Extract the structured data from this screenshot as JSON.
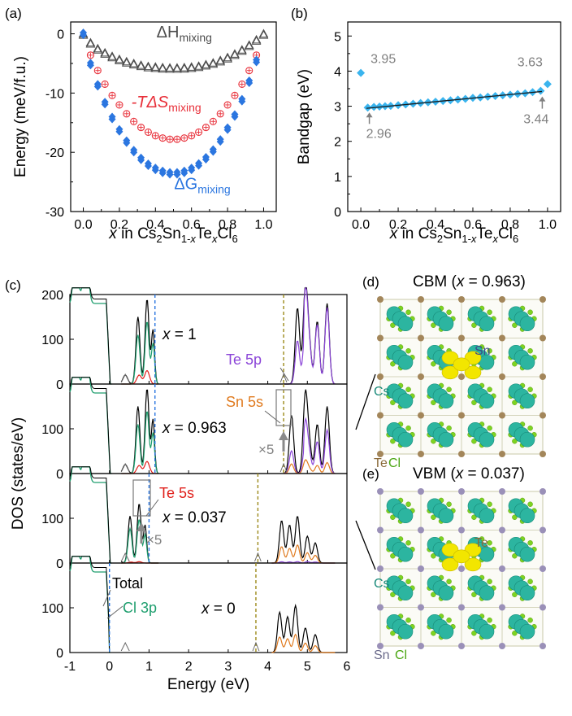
{
  "panel_labels": {
    "a": "(a)",
    "b": "(b)",
    "c": "(c)",
    "d": "(d)",
    "e": "(e)"
  },
  "colors": {
    "dH": "#4d4d4d",
    "TdS": "#e8303a",
    "dG": "#2b76e0",
    "bandgap": "#3ab4ee",
    "fit": "#1a1a1a",
    "total": "#000000",
    "cl3p": "#1e9e6e",
    "te5s": "#e0201b",
    "sn5s": "#e07b20",
    "te5p": "#8b45d8",
    "vbm_line": "#2b76e0",
    "cbm_line": "#9c8a1a",
    "gray_annot": "#808080",
    "cs_atom": "#2cb5a0",
    "cl_atom": "#7ed321",
    "sn_atom": "#9a90b8",
    "te_atom": "#a3865a",
    "orbital": "#f2e600"
  },
  "chart_data": [
    {
      "panel": "a",
      "type": "scatter",
      "xlabel": {
        "prefix": "x",
        "text": " in Cs",
        "formula": "Cs2Sn1-xTexCl6"
      },
      "ylabel": "Energy (meV/f.u.)",
      "xlim": [
        -0.07,
        1.07
      ],
      "ylim": [
        -30,
        2
      ],
      "xticks": [
        0,
        0.2,
        0.4,
        0.6,
        0.8,
        1.0
      ],
      "xtick_labels": [
        "0.0",
        "0.2",
        "0.4",
        "0.6",
        "0.8",
        "1.0"
      ],
      "yticks": [
        0,
        -10,
        -20,
        -30
      ],
      "ytick_labels": [
        "0",
        "-10",
        "-20",
        "-30"
      ],
      "series": [
        {
          "name": "ΔH",
          "sub": "mixing",
          "marker": "open-triangle",
          "x": [
            0,
            0.04,
            0.08,
            0.12,
            0.16,
            0.2,
            0.24,
            0.28,
            0.32,
            0.36,
            0.4,
            0.44,
            0.48,
            0.52,
            0.56,
            0.6,
            0.64,
            0.68,
            0.72,
            0.76,
            0.8,
            0.84,
            0.88,
            0.92,
            0.96,
            1.0
          ],
          "y": [
            0,
            -1.5,
            -2.5,
            -3.2,
            -3.8,
            -4.3,
            -4.7,
            -5.0,
            -5.3,
            -5.5,
            -5.6,
            -5.7,
            -5.75,
            -5.75,
            -5.7,
            -5.6,
            -5.45,
            -5.2,
            -4.9,
            -4.5,
            -4.0,
            -3.4,
            -2.7,
            -1.9,
            -1.0,
            0
          ]
        },
        {
          "name": "-TΔS",
          "sub": "mixing",
          "marker": "circle-cross",
          "x": [
            0.04,
            0.08,
            0.12,
            0.16,
            0.2,
            0.24,
            0.28,
            0.32,
            0.36,
            0.4,
            0.44,
            0.48,
            0.52,
            0.56,
            0.6,
            0.64,
            0.68,
            0.72,
            0.76,
            0.8,
            0.84,
            0.88,
            0.92,
            0.96
          ],
          "y": [
            -3.6,
            -6.2,
            -8.5,
            -10.4,
            -12.0,
            -13.5,
            -14.8,
            -15.8,
            -16.6,
            -17.2,
            -17.6,
            -17.8,
            -17.8,
            -17.6,
            -17.2,
            -16.6,
            -15.8,
            -14.8,
            -13.5,
            -12.0,
            -10.4,
            -8.5,
            -6.2,
            -3.6
          ]
        },
        {
          "name": "ΔG",
          "sub": "mixing",
          "marker": "filled-diamond",
          "x": [
            0,
            0.04,
            0.08,
            0.12,
            0.16,
            0.2,
            0.24,
            0.28,
            0.32,
            0.36,
            0.4,
            0.44,
            0.48,
            0.52,
            0.56,
            0.6,
            0.64,
            0.68,
            0.72,
            0.76,
            0.8,
            0.84,
            0.88,
            0.92,
            0.96
          ],
          "y": [
            0,
            -5.1,
            -8.7,
            -11.7,
            -14.2,
            -16.3,
            -18.2,
            -19.8,
            -21.1,
            -22.1,
            -22.8,
            -23.3,
            -23.55,
            -23.55,
            -23.3,
            -22.8,
            -22.05,
            -21.0,
            -19.7,
            -18.0,
            -16.0,
            -13.8,
            -11.2,
            -8.1,
            -4.6
          ]
        }
      ],
      "annotations": [
        {
          "main": "ΔH",
          "sub": "mixing",
          "x": 0.56,
          "y": -0.6
        },
        {
          "main": "-TΔS",
          "sub": "mixing",
          "x": 0.46,
          "y": -12.4
        },
        {
          "main": "ΔG",
          "sub": "mixing",
          "x": 0.66,
          "y": -26.2
        }
      ]
    },
    {
      "panel": "b",
      "type": "scatter",
      "xlabel": "x in Cs2Sn1-xTexCl6",
      "ylabel": "Bandgap (eV)",
      "xlim": [
        -0.07,
        1.07
      ],
      "ylim": [
        0,
        5.4
      ],
      "xticks": [
        0,
        0.2,
        0.4,
        0.6,
        0.8,
        1.0
      ],
      "xtick_labels": [
        "0.0",
        "0.2",
        "0.4",
        "0.6",
        "0.8",
        "1.0"
      ],
      "yticks": [
        0,
        1,
        2,
        3,
        4,
        5
      ],
      "ytick_labels": [
        "0",
        "1",
        "2",
        "3",
        "4",
        "5"
      ],
      "series": [
        {
          "name": "bandgap",
          "x": [
            0,
            0.037,
            0.07,
            0.1,
            0.13,
            0.16,
            0.2,
            0.24,
            0.28,
            0.32,
            0.36,
            0.4,
            0.44,
            0.48,
            0.52,
            0.56,
            0.6,
            0.64,
            0.68,
            0.72,
            0.76,
            0.8,
            0.84,
            0.88,
            0.92,
            0.963,
            1.0
          ],
          "y": [
            3.95,
            2.96,
            2.98,
            2.99,
            3.0,
            3.01,
            3.03,
            3.05,
            3.07,
            3.09,
            3.11,
            3.13,
            3.15,
            3.17,
            3.19,
            3.21,
            3.24,
            3.25,
            3.27,
            3.29,
            3.31,
            3.33,
            3.35,
            3.37,
            3.4,
            3.44,
            3.63
          ]
        }
      ],
      "fit": {
        "x": [
          0.03,
          0.97
        ],
        "y": [
          2.94,
          3.42
        ]
      },
      "point_labels": [
        {
          "text": "3.95",
          "x": 0,
          "y": 3.95
        },
        {
          "text": "2.96",
          "x": 0.037,
          "y": 2.96
        },
        {
          "text": "3.63",
          "x": 1.0,
          "y": 3.63
        },
        {
          "text": "3.44",
          "x": 0.963,
          "y": 3.44
        }
      ]
    },
    {
      "panel": "c",
      "type": "line",
      "xlabel": "Energy (eV)",
      "ylabel": "DOS (states/eV)",
      "xlim": [
        -1,
        6
      ],
      "ylim": [
        0,
        200
      ],
      "xticks": [
        -1,
        0,
        1,
        2,
        3,
        4,
        5,
        6
      ],
      "xtick_labels": [
        "-1",
        "0",
        "1",
        "2",
        "3",
        "4",
        "5",
        "6"
      ],
      "yticks": [
        0,
        100,
        200
      ],
      "subpanels": [
        {
          "label": "x = 1",
          "x_value": "1",
          "vbm": 1.15,
          "cbm": 4.4,
          "ytick_labels": [
            "0",
            "100",
            "200"
          ]
        },
        {
          "label": "x = 0.963",
          "x_value": "0.963",
          "vbm": 1.15,
          "cbm": 4.4,
          "ytick_labels": [
            "0",
            "100",
            ""
          ]
        },
        {
          "label": "x = 0.037",
          "x_value": "0.037",
          "vbm": 1.0,
          "cbm": 3.75,
          "ytick_labels": [
            "0",
            "100",
            ""
          ]
        },
        {
          "label": "x = 0",
          "x_value": "0",
          "vbm": 0.0,
          "cbm": 3.7,
          "ytick_labels": [
            "0",
            "100",
            ""
          ]
        }
      ],
      "legend": [
        "Total",
        "Cl 3p",
        "Te 5s",
        "Sn 5s",
        "Te 5p"
      ],
      "annotations": [
        "Te 5p",
        "Sn 5s",
        "Te 5s",
        "Total",
        "Cl 3p",
        "×5",
        "×5"
      ]
    }
  ],
  "structure_panels": [
    {
      "panel": "d",
      "title_prefix": "CBM (",
      "title_var": "x",
      "title_suffix": " = 0.963)",
      "atom_labels": [
        "Sn",
        "Cs",
        "Te",
        "Cl"
      ]
    },
    {
      "panel": "e",
      "title_prefix": "VBM (",
      "title_var": "x",
      "title_suffix": " = 0.037)",
      "atom_labels": [
        "Te",
        "Cs",
        "Sn",
        "Cl"
      ]
    }
  ]
}
